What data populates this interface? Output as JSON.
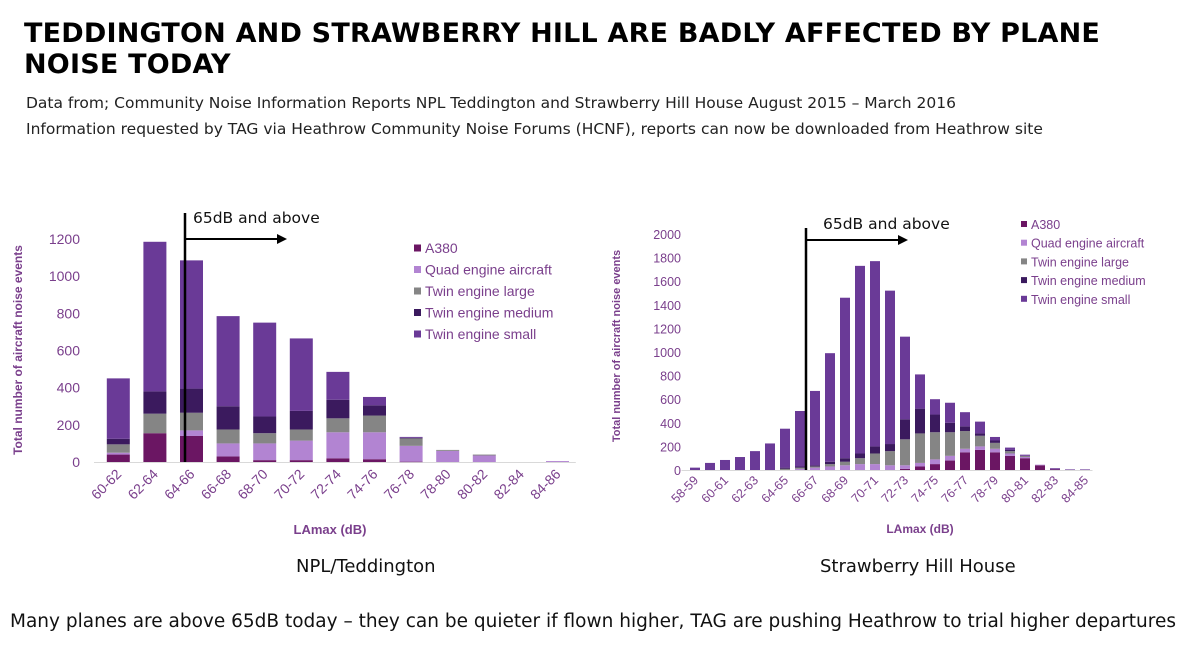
{
  "page": {
    "title": "TEDDINGTON AND STRAWBERRY HILL ARE BADLY AFFECTED BY PLANE NOISE TODAY",
    "subtitle_1": "Data from; Community Noise Information Reports NPL Teddington and Strawberry Hill House August 2015 – March 2016",
    "subtitle_2": "Information requested by TAG via Heathrow Community Noise Forums (HCNF), reports can now be downloaded from Heathrow site",
    "footer": "Many planes are above 65dB today – they can be quieter if flown higher, TAG are pushing Heathrow to trial higher departures"
  },
  "chart_data": [
    {
      "type": "bar",
      "stacked": true,
      "caption": "NPL/Teddington",
      "annotation": "65dB and above",
      "xlabel": "LAmax (dB)",
      "ylabel": "Total number of aircraft noise events",
      "ylim": [
        0,
        1200
      ],
      "yticks": [
        0,
        200,
        400,
        600,
        800,
        1000,
        1200
      ],
      "legend_position": "top-right",
      "categories": [
        "60-62",
        "62-64",
        "64-66",
        "66-68",
        "68-70",
        "70-72",
        "72-74",
        "74-76",
        "76-78",
        "78-80",
        "80-82",
        "82-84",
        "84-86"
      ],
      "series": [
        {
          "name": "A380",
          "color": "#6b1663",
          "values": [
            40,
            155,
            140,
            30,
            10,
            10,
            20,
            15,
            2,
            0,
            0,
            0,
            0
          ]
        },
        {
          "name": "Quad engine aircraft",
          "color": "#b284d2",
          "values": [
            10,
            0,
            30,
            70,
            90,
            105,
            140,
            145,
            85,
            60,
            35,
            0,
            5
          ]
        },
        {
          "name": "Twin engine large",
          "color": "#858585",
          "values": [
            45,
            105,
            95,
            75,
            55,
            60,
            75,
            90,
            40,
            5,
            5,
            0,
            0
          ]
        },
        {
          "name": "Twin engine medium",
          "color": "#3b1a5e",
          "values": [
            30,
            120,
            130,
            125,
            90,
            100,
            100,
            55,
            3,
            0,
            0,
            0,
            0
          ]
        },
        {
          "name": "Twin engine small",
          "color": "#6a3a97",
          "values": [
            325,
            805,
            690,
            485,
            505,
            390,
            150,
            45,
            5,
            0,
            0,
            0,
            0
          ]
        }
      ]
    },
    {
      "type": "bar",
      "stacked": true,
      "caption": "Strawberry Hill House",
      "annotation": "65dB and above",
      "xlabel": "LAmax (dB)",
      "ylabel": "Total number of aircraft noise events",
      "ylim": [
        0,
        2000
      ],
      "yticks": [
        0,
        200,
        400,
        600,
        800,
        1000,
        1200,
        1400,
        1600,
        1800,
        2000
      ],
      "legend_position": "top-right",
      "categories": [
        "58-59",
        "59-60",
        "60-61",
        "61-62",
        "62-63",
        "63-64",
        "64-65",
        "65-66",
        "66-67",
        "67-68",
        "68-69",
        "69-70",
        "70-71",
        "71-72",
        "72-73",
        "73-74",
        "74-75",
        "75-76",
        "76-77",
        "77-78",
        "78-79",
        "79-80",
        "80-81",
        "81-82",
        "82-83",
        "83-84",
        "84-85"
      ],
      "tick_labels": [
        "58-59",
        "60-61",
        "62-63",
        "64-65",
        "66-67",
        "68-69",
        "70-71",
        "72-73",
        "74-75",
        "76-77",
        "78-79",
        "80-81",
        "82-83",
        "84-85"
      ],
      "series": [
        {
          "name": "A380",
          "color": "#6b1663",
          "values": [
            0,
            0,
            0,
            0,
            0,
            0,
            0,
            0,
            0,
            0,
            0,
            0,
            0,
            0,
            10,
            30,
            50,
            80,
            150,
            170,
            150,
            120,
            100,
            40,
            5,
            0,
            0
          ]
        },
        {
          "name": "Quad engine aircraft",
          "color": "#b284d2",
          "values": [
            0,
            0,
            0,
            0,
            0,
            0,
            0,
            10,
            20,
            30,
            40,
            50,
            50,
            40,
            30,
            30,
            40,
            40,
            30,
            30,
            30,
            20,
            10,
            5,
            0,
            0,
            0
          ]
        },
        {
          "name": "Twin engine large",
          "color": "#858585",
          "values": [
            0,
            0,
            0,
            0,
            0,
            0,
            10,
            10,
            10,
            20,
            30,
            50,
            90,
            120,
            220,
            250,
            230,
            200,
            150,
            90,
            50,
            20,
            10,
            0,
            0,
            0,
            0
          ]
        },
        {
          "name": "Twin engine medium",
          "color": "#3b1a5e",
          "values": [
            0,
            0,
            0,
            0,
            0,
            0,
            10,
            10,
            10,
            20,
            30,
            40,
            60,
            60,
            170,
            210,
            150,
            80,
            40,
            20,
            20,
            10,
            0,
            0,
            0,
            0,
            0
          ]
        },
        {
          "name": "Twin engine small",
          "color": "#6a3a97",
          "values": [
            20,
            60,
            85,
            110,
            160,
            225,
            330,
            470,
            630,
            920,
            1360,
            1590,
            1570,
            1300,
            700,
            290,
            130,
            170,
            120,
            100,
            30,
            20,
            10,
            0,
            10,
            5,
            5
          ]
        }
      ]
    }
  ]
}
